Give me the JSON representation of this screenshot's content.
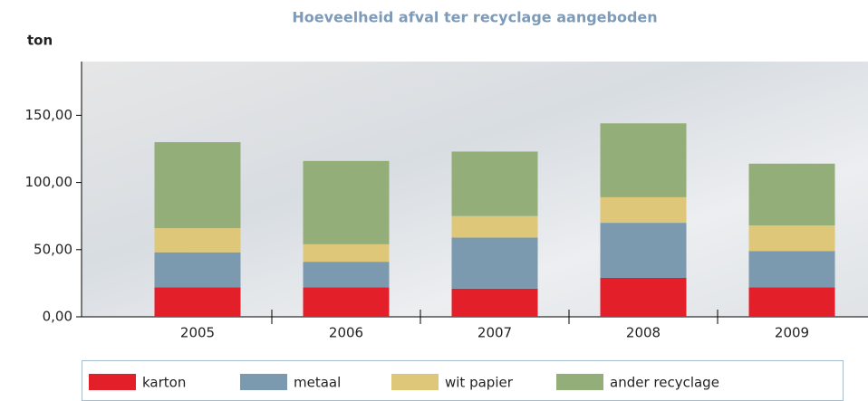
{
  "chart_data": {
    "type": "bar",
    "stacked": true,
    "title": "Hoeveelheid afval ter recyclage aangeboden",
    "y_label": "ton",
    "categories": [
      "2005",
      "2006",
      "2007",
      "2008",
      "2009"
    ],
    "series": [
      {
        "name": "karton",
        "color": "#e3202a",
        "values": [
          22,
          22,
          21,
          29,
          22
        ]
      },
      {
        "name": "metaal",
        "color": "#7b9aaf",
        "values": [
          26,
          19,
          38,
          41,
          27
        ]
      },
      {
        "name": "wit papier",
        "color": "#dfc77a",
        "values": [
          18,
          13,
          16,
          19,
          19
        ]
      },
      {
        "name": "ander recyclage",
        "color": "#93ae78",
        "values": [
          64,
          62,
          48,
          55,
          46
        ]
      }
    ],
    "ylim": [
      0,
      190
    ],
    "yticks": [
      {
        "value": 0,
        "label": "0,00"
      },
      {
        "value": 50,
        "label": "50,00"
      },
      {
        "value": 100,
        "label": "100,00"
      },
      {
        "value": 150,
        "label": "150,00"
      }
    ]
  }
}
